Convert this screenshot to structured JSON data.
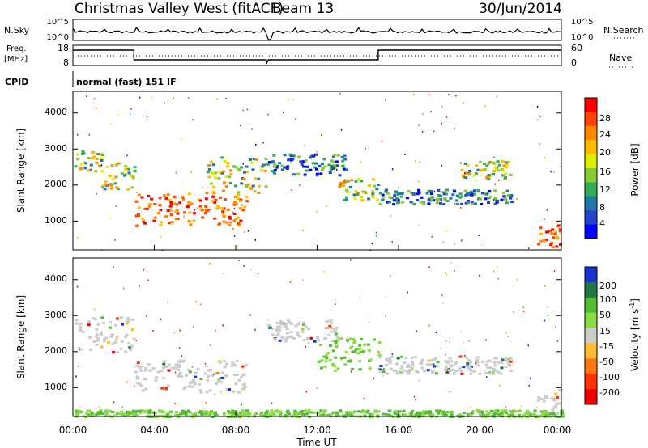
{
  "header": {
    "station": "Christmas Valley West (fitACF)",
    "beam": "Beam 13",
    "date": "30/Jun/2014"
  },
  "top_panels": {
    "nsky_label": "N.Sky",
    "nsky_ticks": [
      "10^5",
      "10^0"
    ],
    "nsearch_label": "N.Search",
    "nsearch_ticks": [
      "10^5",
      "10^0"
    ],
    "freq_label_1": "Freq.",
    "freq_label_2": "[MHz]",
    "freq_ticks": [
      "18",
      "8"
    ],
    "nave_label": "Nave",
    "nave_ticks": [
      "60",
      "0"
    ],
    "cpid_label": "CPID",
    "cpid_value": "normal (fast) 151 IF"
  },
  "chart_data": [
    {
      "type": "heatmap",
      "name": "power",
      "ylabel": "Slant Range [km]",
      "yticks": [
        "1000",
        "2000",
        "3000",
        "4000"
      ],
      "ylim": [
        200,
        4600
      ],
      "colorbar": {
        "label": "Power [dB]",
        "ticks": [
          "28",
          "24",
          "20",
          "16",
          "12",
          "8",
          "4"
        ],
        "colors": [
          "#ff0000",
          "#ff4400",
          "#ff8800",
          "#ffbb00",
          "#ddee00",
          "#88cc33",
          "#33aa55",
          "#2277aa",
          "#2244cc",
          "#0000ff"
        ]
      },
      "bands": [
        {
          "x0": 0.0,
          "x1": 1.4,
          "y0": 2400,
          "y1": 3000,
          "level": "mid"
        },
        {
          "x0": 1.4,
          "x1": 3.0,
          "y0": 1900,
          "y1": 2700,
          "level": "mid"
        },
        {
          "x0": 3.0,
          "x1": 8.5,
          "y0": 900,
          "y1": 1800,
          "level": "high"
        },
        {
          "x0": 6.5,
          "x1": 9.5,
          "y0": 1800,
          "y1": 2800,
          "level": "mid"
        },
        {
          "x0": 9.5,
          "x1": 13.5,
          "y0": 2300,
          "y1": 2900,
          "level": "low"
        },
        {
          "x0": 13.0,
          "x1": 15.0,
          "y0": 1600,
          "y1": 2200,
          "level": "mid"
        },
        {
          "x0": 15.0,
          "x1": 21.5,
          "y0": 1500,
          "y1": 1900,
          "level": "low"
        },
        {
          "x0": 19.0,
          "x1": 21.5,
          "y0": 2200,
          "y1": 2700,
          "level": "mid"
        },
        {
          "x0": 22.8,
          "x1": 24.0,
          "y0": 300,
          "y1": 1000,
          "level": "high"
        }
      ]
    },
    {
      "type": "heatmap",
      "name": "velocity",
      "ylabel": "Slant Range [km]",
      "yticks": [
        "1000",
        "2000",
        "3000",
        "4000"
      ],
      "ylim": [
        200,
        4600
      ],
      "colorbar": {
        "label": "Velocity [m s",
        "label_sup": "-1",
        "label_end": "]",
        "ticks": [
          "200",
          "100",
          "50",
          "15",
          "-15",
          "-50",
          "-100",
          "-200"
        ],
        "colors": [
          "#1a33cc",
          "#227744",
          "#55bb33",
          "#88dd44",
          "#cccccc",
          "#ffbb33",
          "#ff7711",
          "#ff3300",
          "#ee0000"
        ]
      },
      "bands": [
        {
          "x0": 0.0,
          "x1": 3.0,
          "y0": 2000,
          "y1": 3000,
          "tone": "ground"
        },
        {
          "x0": 3.0,
          "x1": 8.5,
          "y0": 900,
          "y1": 1800,
          "tone": "ground"
        },
        {
          "x0": 9.5,
          "x1": 13.0,
          "y0": 2300,
          "y1": 2900,
          "tone": "ground"
        },
        {
          "x0": 12.0,
          "x1": 15.0,
          "y0": 1500,
          "y1": 2400,
          "tone": "positive"
        },
        {
          "x0": 15.0,
          "x1": 21.5,
          "y0": 1400,
          "y1": 1900,
          "tone": "ground"
        },
        {
          "x0": 22.8,
          "x1": 24.0,
          "y0": 300,
          "y1": 1000,
          "tone": "ground"
        },
        {
          "x0": 0.0,
          "x1": 24.0,
          "y0": 220,
          "y1": 400,
          "tone": "positive"
        }
      ]
    }
  ],
  "x_axis": {
    "ticks": [
      "00:00",
      "04:00",
      "08:00",
      "12:00",
      "16:00",
      "20:00",
      "00:00"
    ],
    "xlabel": "Time UT"
  }
}
